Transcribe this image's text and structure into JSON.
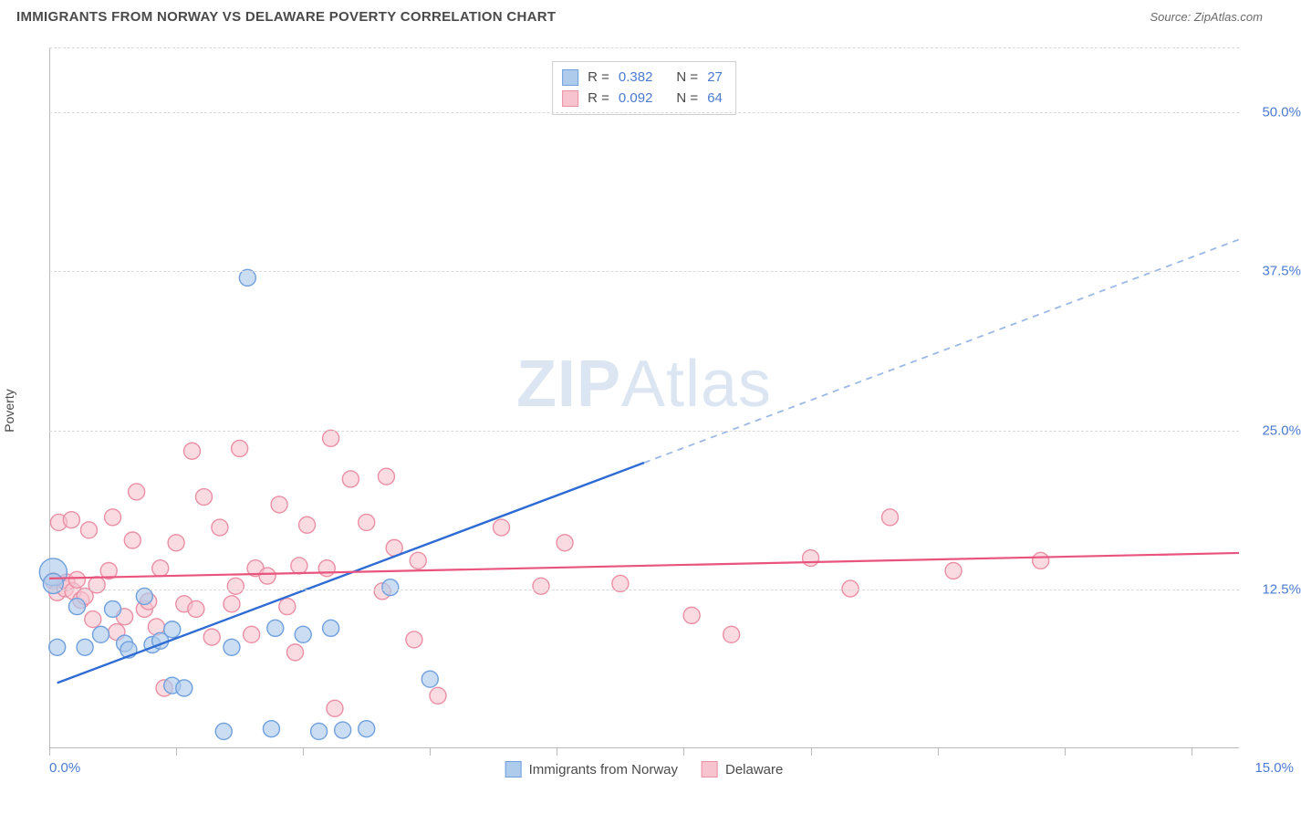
{
  "header": {
    "title": "IMMIGRANTS FROM NORWAY VS DELAWARE POVERTY CORRELATION CHART",
    "source_prefix": "Source: ",
    "source_name": "ZipAtlas.com"
  },
  "chart": {
    "type": "scatter",
    "ylabel": "Poverty",
    "watermark": {
      "bold": "ZIP",
      "light": "Atlas",
      "color": "#dce6f2",
      "fontsize": 72
    },
    "background_color": "#ffffff",
    "grid_color": "#d9d9d9",
    "axis_line_color": "#b9b9b9",
    "tick_label_color": "#4b7bd1",
    "xlim": [
      0,
      15
    ],
    "ylim": [
      0,
      55
    ],
    "y_gridlines": [
      12.5,
      25.0,
      37.5,
      50.0
    ],
    "y_tick_labels": [
      "12.5%",
      "25.0%",
      "37.5%",
      "50.0%"
    ],
    "x_tick_positions": [
      0,
      1.6,
      3.2,
      4.8,
      6.4,
      8.0,
      9.6,
      11.2,
      12.8,
      14.4
    ],
    "x_axis_labels": {
      "left": "0.0%",
      "right": "15.0%"
    },
    "series": [
      {
        "name": "Immigrants from Norway",
        "marker_fill": "#aecbeb",
        "marker_stroke": "#6fa0dd",
        "marker_fill_opacity": 0.65,
        "marker_radius": 9,
        "line_color": "#2e6bd3",
        "line_width": 2.4,
        "dash_extrapolate_color": "#9bb9e6",
        "regression": {
          "x1": 0.1,
          "y1": 5.2,
          "x2": 15.0,
          "y2": 40.0,
          "solid_until_x": 7.5
        },
        "r_value": "0.382",
        "n_value": "27",
        "points": [
          {
            "x": 0.05,
            "y": 13.9,
            "r": 15
          },
          {
            "x": 0.05,
            "y": 13.0,
            "r": 11
          },
          {
            "x": 0.1,
            "y": 8.0
          },
          {
            "x": 0.35,
            "y": 11.2
          },
          {
            "x": 0.45,
            "y": 8.0
          },
          {
            "x": 0.65,
            "y": 9.0
          },
          {
            "x": 0.8,
            "y": 11.0
          },
          {
            "x": 0.95,
            "y": 8.3
          },
          {
            "x": 1.0,
            "y": 7.8
          },
          {
            "x": 1.2,
            "y": 12.0
          },
          {
            "x": 1.3,
            "y": 8.2
          },
          {
            "x": 1.4,
            "y": 8.5
          },
          {
            "x": 1.55,
            "y": 5.0
          },
          {
            "x": 1.55,
            "y": 9.4
          },
          {
            "x": 1.7,
            "y": 4.8
          },
          {
            "x": 2.2,
            "y": 1.4
          },
          {
            "x": 2.3,
            "y": 8.0
          },
          {
            "x": 2.5,
            "y": 37.0
          },
          {
            "x": 2.8,
            "y": 1.6
          },
          {
            "x": 2.85,
            "y": 9.5
          },
          {
            "x": 3.2,
            "y": 9.0
          },
          {
            "x": 3.4,
            "y": 1.4
          },
          {
            "x": 3.55,
            "y": 9.5
          },
          {
            "x": 3.7,
            "y": 1.5
          },
          {
            "x": 4.0,
            "y": 1.6
          },
          {
            "x": 4.3,
            "y": 12.7
          },
          {
            "x": 4.8,
            "y": 5.5
          }
        ]
      },
      {
        "name": "Delaware",
        "marker_fill": "#f6c3ce",
        "marker_stroke": "#eb8fa5",
        "marker_fill_opacity": 0.6,
        "marker_radius": 9,
        "line_color": "#e9547e",
        "line_width": 2.2,
        "regression": {
          "x1": 0.0,
          "y1": 13.4,
          "x2": 15.0,
          "y2": 15.4
        },
        "r_value": "0.092",
        "n_value": "64",
        "points": [
          {
            "x": 0.05,
            "y": 13.2
          },
          {
            "x": 0.1,
            "y": 12.3
          },
          {
            "x": 0.12,
            "y": 17.8
          },
          {
            "x": 0.2,
            "y": 12.6
          },
          {
            "x": 0.22,
            "y": 13.1
          },
          {
            "x": 0.28,
            "y": 18.0
          },
          {
            "x": 0.3,
            "y": 12.4
          },
          {
            "x": 0.35,
            "y": 13.3
          },
          {
            "x": 0.4,
            "y": 11.7
          },
          {
            "x": 0.45,
            "y": 12.0
          },
          {
            "x": 0.5,
            "y": 17.2
          },
          {
            "x": 0.55,
            "y": 10.2
          },
          {
            "x": 0.6,
            "y": 12.9
          },
          {
            "x": 0.75,
            "y": 14.0
          },
          {
            "x": 0.8,
            "y": 18.2
          },
          {
            "x": 0.85,
            "y": 9.2
          },
          {
            "x": 0.95,
            "y": 10.4
          },
          {
            "x": 1.05,
            "y": 16.4
          },
          {
            "x": 1.1,
            "y": 20.2
          },
          {
            "x": 1.2,
            "y": 11.0
          },
          {
            "x": 1.25,
            "y": 11.6
          },
          {
            "x": 1.35,
            "y": 9.6
          },
          {
            "x": 1.4,
            "y": 14.2
          },
          {
            "x": 1.45,
            "y": 4.8
          },
          {
            "x": 1.6,
            "y": 16.2
          },
          {
            "x": 1.7,
            "y": 11.4
          },
          {
            "x": 1.8,
            "y": 23.4
          },
          {
            "x": 1.85,
            "y": 11.0
          },
          {
            "x": 1.95,
            "y": 19.8
          },
          {
            "x": 2.05,
            "y": 8.8
          },
          {
            "x": 2.15,
            "y": 17.4
          },
          {
            "x": 2.3,
            "y": 11.4
          },
          {
            "x": 2.35,
            "y": 12.8
          },
          {
            "x": 2.4,
            "y": 23.6
          },
          {
            "x": 2.55,
            "y": 9.0
          },
          {
            "x": 2.6,
            "y": 14.2
          },
          {
            "x": 2.75,
            "y": 13.6
          },
          {
            "x": 2.9,
            "y": 19.2
          },
          {
            "x": 3.0,
            "y": 11.2
          },
          {
            "x": 3.1,
            "y": 7.6
          },
          {
            "x": 3.15,
            "y": 14.4
          },
          {
            "x": 3.25,
            "y": 17.6
          },
          {
            "x": 3.5,
            "y": 14.2
          },
          {
            "x": 3.55,
            "y": 24.4
          },
          {
            "x": 3.6,
            "y": 3.2
          },
          {
            "x": 3.8,
            "y": 21.2
          },
          {
            "x": 4.0,
            "y": 17.8
          },
          {
            "x": 4.2,
            "y": 12.4
          },
          {
            "x": 4.25,
            "y": 21.4
          },
          {
            "x": 4.35,
            "y": 15.8
          },
          {
            "x": 4.6,
            "y": 8.6
          },
          {
            "x": 4.65,
            "y": 14.8
          },
          {
            "x": 4.9,
            "y": 4.2
          },
          {
            "x": 5.7,
            "y": 17.4
          },
          {
            "x": 6.2,
            "y": 12.8
          },
          {
            "x": 6.5,
            "y": 16.2
          },
          {
            "x": 7.2,
            "y": 13.0
          },
          {
            "x": 8.1,
            "y": 10.5
          },
          {
            "x": 8.6,
            "y": 9.0
          },
          {
            "x": 9.6,
            "y": 15.0
          },
          {
            "x": 10.1,
            "y": 12.6
          },
          {
            "x": 10.6,
            "y": 18.2
          },
          {
            "x": 11.4,
            "y": 14.0
          },
          {
            "x": 12.5,
            "y": 14.8
          }
        ]
      }
    ],
    "legend_stats_labels": {
      "r": "R",
      "eq": "=",
      "n": "N"
    },
    "bottom_legend": true
  }
}
